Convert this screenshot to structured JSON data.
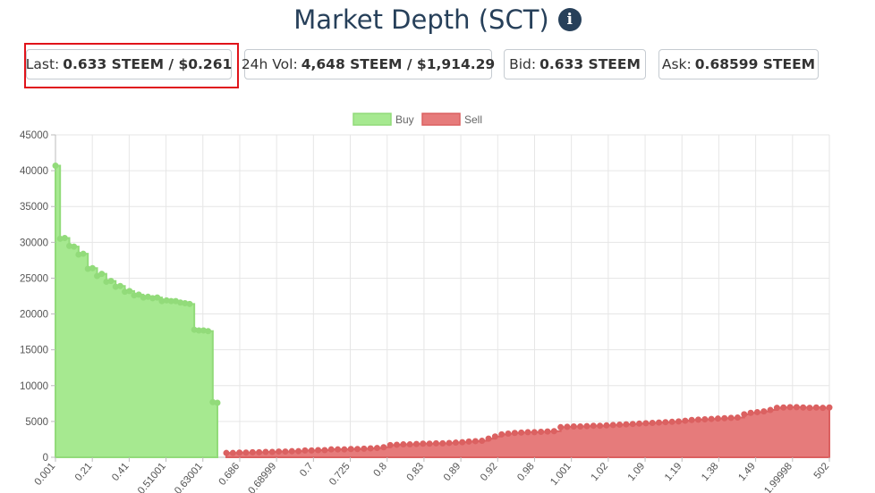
{
  "header": {
    "title": "Market Depth (SCT)",
    "info_icon": "info-circle-icon"
  },
  "stats": {
    "last": {
      "label": "Last:",
      "value": "0.633 STEEM / $0.261"
    },
    "vol": {
      "label": "24h Vol:",
      "value": "4,648 STEEM / $1,914.29"
    },
    "bid": {
      "label": "Bid:",
      "value": "0.633 STEEM"
    },
    "ask": {
      "label": "Ask:",
      "value": "0.68599 STEEM"
    }
  },
  "colors": {
    "buy_fill": "#a6e990",
    "buy_line": "#92db7a",
    "sell_fill": "#e67b7b",
    "sell_line": "#db6161",
    "highlight": "#e0131a",
    "title": "#27405a"
  },
  "chart_data": {
    "type": "area",
    "legend": [
      "Buy",
      "Sell"
    ],
    "legend_position": "top-center",
    "grid": true,
    "ylim": [
      0,
      45000
    ],
    "yticks": [
      "45000",
      "40000",
      "35000",
      "30000",
      "25000",
      "20000",
      "15000",
      "10000",
      "5000",
      "0"
    ],
    "xticks": [
      "0.001",
      "0.21",
      "0.41",
      "0.51001",
      "0.63001",
      "0.686",
      "0.68999",
      "0.7",
      "0.725",
      "0.8",
      "0.83",
      "0.89",
      "0.92",
      "0.98",
      "1.001",
      "1.02",
      "1.09",
      "1.19",
      "1.38",
      "1.49",
      "1.99998",
      "502"
    ],
    "series": [
      {
        "name": "Buy",
        "values": [
          40700,
          30500,
          30600,
          29500,
          29400,
          28300,
          28400,
          26300,
          26400,
          25300,
          25600,
          24500,
          24600,
          23800,
          23900,
          23100,
          23200,
          22600,
          22700,
          22300,
          22400,
          22200,
          22300,
          21800,
          21900,
          21800,
          21800,
          21600,
          21500,
          21400,
          17800,
          17700,
          17700,
          17600,
          7700,
          7600
        ]
      },
      {
        "name": "Sell",
        "values": [
          600,
          600,
          650,
          650,
          700,
          700,
          750,
          750,
          800,
          800,
          850,
          850,
          950,
          950,
          1000,
          1000,
          1100,
          1100,
          1100,
          1150,
          1150,
          1200,
          1250,
          1300,
          1400,
          1700,
          1750,
          1800,
          1800,
          1850,
          1900,
          1900,
          1950,
          1950,
          2000,
          2050,
          2100,
          2200,
          2250,
          2300,
          2600,
          2900,
          3200,
          3300,
          3400,
          3450,
          3500,
          3500,
          3550,
          3600,
          3650,
          4200,
          4250,
          4300,
          4300,
          4350,
          4400,
          4400,
          4450,
          4500,
          4550,
          4600,
          4650,
          4700,
          4750,
          4800,
          4850,
          4900,
          4950,
          5000,
          5100,
          5200,
          5250,
          5300,
          5350,
          5400,
          5450,
          5500,
          5550,
          6000,
          6200,
          6300,
          6400,
          6600,
          6900,
          6950,
          7000,
          7000,
          6950,
          6900,
          6950,
          6900,
          6950
        ]
      }
    ]
  }
}
